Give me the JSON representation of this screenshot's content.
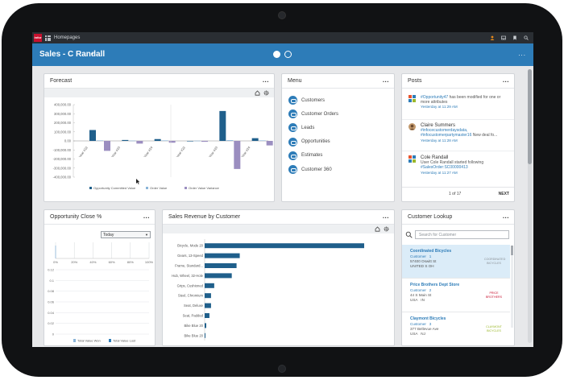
{
  "topbar": {
    "logo_text": "infor",
    "app_name": "Homepages",
    "icons": [
      "user-icon",
      "inbox-icon",
      "bookmark-icon",
      "search-icon"
    ]
  },
  "header": {
    "title": "Sales - C Randall",
    "caret": "▾",
    "more": "...",
    "pages": [
      {
        "active": true
      },
      {
        "active": false
      }
    ]
  },
  "forecast": {
    "title": "Forecast",
    "more": "...",
    "tools": [
      "home-icon",
      "gear-icon"
    ],
    "chart_data": {
      "type": "bar",
      "y_ticks": [
        "400,000.00",
        "300,000.00",
        "200,000.00",
        "100,000.00",
        "0.00",
        "-100,000.00",
        "-200,000.00",
        "-300,000.00",
        "-400,000.00"
      ],
      "ylim": [
        -400000,
        400000
      ],
      "categories": [
        "Year #22",
        "Year #23",
        "Year #24",
        "Year #22",
        "Year #23",
        "Year #24"
      ],
      "series": [
        {
          "name": "Opportunity Committed Value",
          "color": "#1f5f8b",
          "values": [
            120000,
            10000,
            20000,
            0,
            330000,
            30000
          ]
        },
        {
          "name": "Order Value",
          "color": "#8ab4d8",
          "values": [
            5000,
            3000,
            5000,
            2000,
            8000,
            5000
          ]
        },
        {
          "name": "Order Value Variance",
          "color": "#9b8ec0",
          "values": [
            -110000,
            -30000,
            -20000,
            -10000,
            -310000,
            -50000
          ]
        }
      ]
    }
  },
  "menu": {
    "title": "Menu",
    "more": "...",
    "items": [
      {
        "label": "Customers",
        "name": "menu-item-customers"
      },
      {
        "label": "Customer Orders",
        "name": "menu-item-customer-orders"
      },
      {
        "label": "Leads",
        "name": "menu-item-leads"
      },
      {
        "label": "Opportunities",
        "name": "menu-item-opportunities"
      },
      {
        "label": "Estimates",
        "name": "menu-item-estimates"
      },
      {
        "label": "Customer 360",
        "name": "menu-item-customer-360"
      }
    ]
  },
  "posts": {
    "title": "Posts",
    "more": "...",
    "items": [
      {
        "line1": "#Opportunity47",
        "line2": " has been modified for one or more attributes",
        "time": "Yesterday at 11:29 AM"
      },
      {
        "name": "Claire Summers",
        "line1": "#infocecustomerdaysdata, #infocustomerpartymaster16",
        "line2": " New deal fo...",
        "time": "Yesterday at 11:28 AM"
      },
      {
        "name": "Cole Randall",
        "line1": "User Cole Randall started following",
        "line2": "#SalesOrder:SC00000413",
        "time": "Yesterday at 11:27 AM"
      }
    ],
    "page": "1 of 17",
    "next": "NEXT"
  },
  "opp_close": {
    "title": "Opportunity Close %",
    "more": "...",
    "select_value": "Today",
    "chart_data": {
      "type": "bar",
      "x_ticks": [
        "0%",
        "20%",
        "40%",
        "60%",
        "80%",
        "100%"
      ],
      "y_ticks": [
        "0.12",
        "0.1",
        "0.08",
        "0.06",
        "0.04",
        "0.02",
        "0"
      ],
      "legend": [
        "Total Value Won",
        "Total Value Lost"
      ]
    }
  },
  "sales_revenue": {
    "title": "Sales Revenue by Customer",
    "more": "...",
    "tools": [
      "home-icon",
      "gear-icon"
    ],
    "chart_data": {
      "type": "bar",
      "orientation": "horizontal",
      "categories": [
        "Bicycle, Mode 20",
        "Gears, 13-Speed",
        "Frame, Standard...",
        "Hub, Wheel, 32-Hole",
        "Grips, Cushioned",
        "Steel, Chromium",
        "Seat, Deluxe",
        "Seat, Padded",
        "Bike Blue 20",
        "Bike Blue 20"
      ],
      "values": [
        100,
        22,
        20,
        17,
        6,
        4,
        4,
        3,
        1,
        0.5
      ],
      "color": "#1f5f8b"
    }
  },
  "customer_lookup": {
    "title": "Customer Lookup",
    "more": "...",
    "search_placeholder": "Search for Customer",
    "items": [
      {
        "name": "Coordinated Bicycles",
        "line1": "Customer",
        "line1b": "1",
        "line2": "57400 Oswitt St",
        "line3": "UNITED S OH",
        "logo": "COORDINATED BICYCLES",
        "logo_color": "#8a9096",
        "selected": true
      },
      {
        "name": "Price Brothers Dept Store",
        "line1": "Customer",
        "line1b": "2",
        "line2": "44 S Main St",
        "line3": "USA",
        "line3b": "IN",
        "logo": "PRICE BROTHERS",
        "logo_color": "#c8102e",
        "selected": false
      },
      {
        "name": "Claymont Bicycles",
        "line1": "Customer",
        "line1b": "3",
        "line2": "377 Bellevue Ave",
        "line3": "USA",
        "line3b": "NJ",
        "logo": "CLAYMONT BICYCLES",
        "logo_color": "#9bb82a",
        "selected": false
      }
    ]
  }
}
